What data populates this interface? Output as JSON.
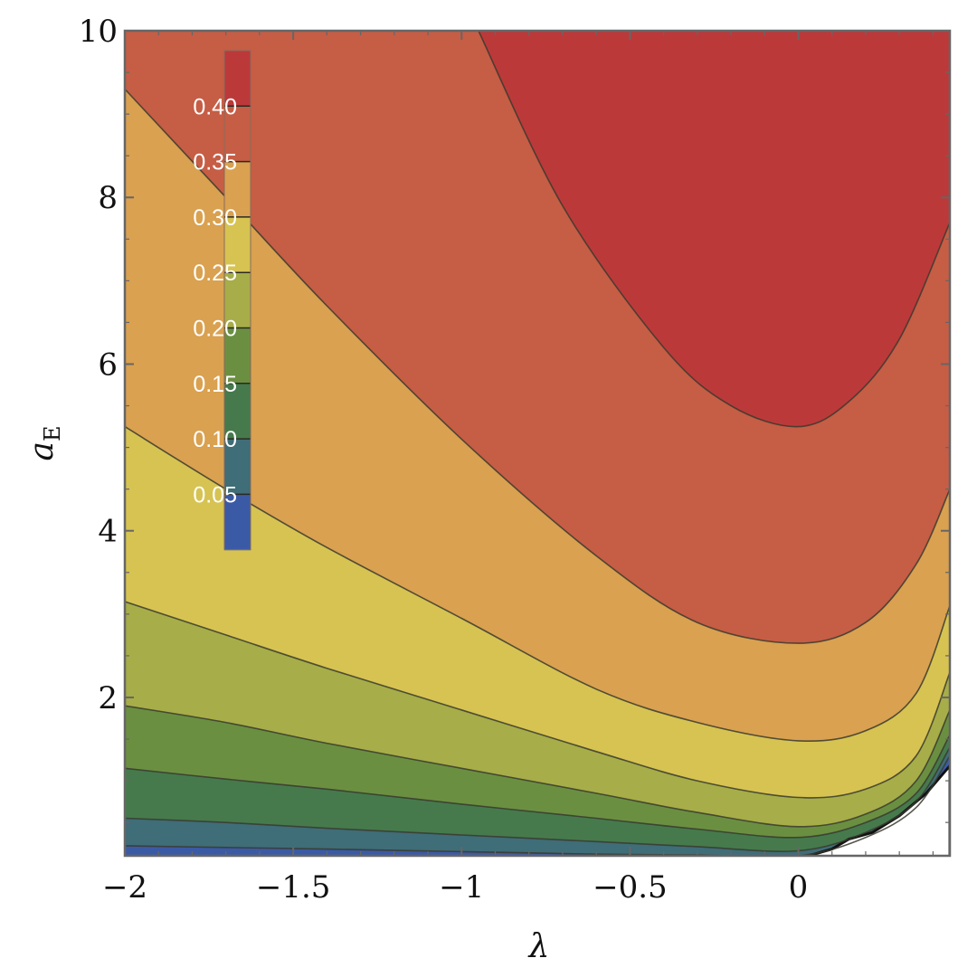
{
  "chart_data": {
    "type": "contour",
    "xlabel": "λ",
    "ylabel": "a",
    "ylabel_subscript": "E",
    "xlim": [
      -2.0,
      0.45
    ],
    "ylim": [
      0.1,
      10
    ],
    "x_ticks": [
      {
        "value": -2,
        "label": "−2"
      },
      {
        "value": -1.5,
        "label": "−1.5"
      },
      {
        "value": -1,
        "label": "−1"
      },
      {
        "value": -0.5,
        "label": "−0.5"
      },
      {
        "value": 0,
        "label": "0"
      }
    ],
    "y_ticks": [
      {
        "value": 2,
        "label": "2"
      },
      {
        "value": 4,
        "label": "4"
      },
      {
        "value": 6,
        "label": "6"
      },
      {
        "value": 8,
        "label": "8"
      },
      {
        "value": 10,
        "label": "10"
      }
    ],
    "contour_levels": [
      0.05,
      0.1,
      0.15,
      0.2,
      0.25,
      0.3,
      0.35,
      0.4
    ],
    "colorbar_labels": [
      "0.05",
      "0.10",
      "0.15",
      "0.20",
      "0.25",
      "0.30",
      "0.35",
      "0.40"
    ],
    "band_colors": [
      "#3b5aa6",
      "#3f6d78",
      "#467a4c",
      "#6b8f41",
      "#a7ad48",
      "#d6c352",
      "#d9a150",
      "#c65d45",
      "#bc393a"
    ],
    "contour_curves": [
      {
        "level": 0.4,
        "points": [
          [
            -0.95,
            10
          ],
          [
            -0.7,
            7.9
          ],
          [
            -0.4,
            6.2
          ],
          [
            -0.2,
            5.5
          ],
          [
            0,
            5.25
          ],
          [
            0.15,
            5.55
          ],
          [
            0.3,
            6.3
          ],
          [
            0.45,
            7.7
          ]
        ]
      },
      {
        "level": 0.35,
        "points": [
          [
            -2.0,
            9.3
          ],
          [
            -1.7,
            8.0
          ],
          [
            -1.4,
            6.7
          ],
          [
            -1.0,
            5.1
          ],
          [
            -0.6,
            3.7
          ],
          [
            -0.3,
            2.9
          ],
          [
            0,
            2.65
          ],
          [
            0.2,
            2.9
          ],
          [
            0.35,
            3.6
          ],
          [
            0.45,
            4.5
          ]
        ]
      },
      {
        "level": 0.3,
        "points": [
          [
            -2.0,
            5.25
          ],
          [
            -1.7,
            4.5
          ],
          [
            -1.4,
            3.8
          ],
          [
            -1.0,
            2.95
          ],
          [
            -0.6,
            2.1
          ],
          [
            -0.3,
            1.7
          ],
          [
            0,
            1.48
          ],
          [
            0.2,
            1.6
          ],
          [
            0.35,
            2.05
          ],
          [
            0.45,
            3.1
          ]
        ]
      },
      {
        "level": 0.25,
        "points": [
          [
            -2.0,
            3.15
          ],
          [
            -1.7,
            2.75
          ],
          [
            -1.4,
            2.35
          ],
          [
            -1.0,
            1.85
          ],
          [
            -0.6,
            1.35
          ],
          [
            -0.3,
            1.0
          ],
          [
            0,
            0.8
          ],
          [
            0.2,
            0.9
          ],
          [
            0.35,
            1.3
          ],
          [
            0.45,
            2.3
          ]
        ]
      },
      {
        "level": 0.2,
        "points": [
          [
            -2.0,
            1.9
          ],
          [
            -1.7,
            1.7
          ],
          [
            -1.4,
            1.45
          ],
          [
            -1.0,
            1.15
          ],
          [
            -0.6,
            0.85
          ],
          [
            -0.3,
            0.62
          ],
          [
            0,
            0.45
          ],
          [
            0.2,
            0.6
          ],
          [
            0.35,
            1.0
          ],
          [
            0.45,
            1.85
          ]
        ]
      },
      {
        "level": 0.15,
        "points": [
          [
            -2.0,
            1.15
          ],
          [
            -1.7,
            1.02
          ],
          [
            -1.4,
            0.9
          ],
          [
            -1.0,
            0.72
          ],
          [
            -0.6,
            0.55
          ],
          [
            -0.3,
            0.42
          ],
          [
            0,
            0.32
          ],
          [
            0.2,
            0.5
          ],
          [
            0.35,
            0.85
          ],
          [
            0.45,
            1.55
          ]
        ]
      },
      {
        "level": 0.1,
        "points": [
          [
            -2.0,
            0.55
          ],
          [
            -1.7,
            0.5
          ],
          [
            -1.4,
            0.43
          ],
          [
            -1.0,
            0.35
          ],
          [
            -0.6,
            0.27
          ],
          [
            -0.3,
            0.21
          ],
          [
            0,
            0.16
          ],
          [
            0.2,
            0.38
          ],
          [
            0.35,
            0.75
          ],
          [
            0.45,
            1.4
          ]
        ]
      },
      {
        "level": 0.05,
        "points": [
          [
            -2.0,
            0.22
          ],
          [
            -1.7,
            0.2
          ],
          [
            -1.4,
            0.18
          ],
          [
            -1.0,
            0.15
          ],
          [
            -0.6,
            0.12
          ],
          [
            -0.3,
            0.11
          ],
          [
            0,
            0.1
          ],
          [
            0.2,
            0.32
          ],
          [
            0.35,
            0.68
          ],
          [
            0.45,
            1.3
          ]
        ]
      }
    ],
    "undefined_region": [
      [
        0.03,
        0.1
      ],
      [
        0.1,
        0.18
      ],
      [
        0.15,
        0.3
      ],
      [
        0.22,
        0.38
      ],
      [
        0.3,
        0.58
      ],
      [
        0.38,
        0.85
      ],
      [
        0.45,
        1.18
      ],
      [
        0.45,
        0.1
      ]
    ]
  }
}
